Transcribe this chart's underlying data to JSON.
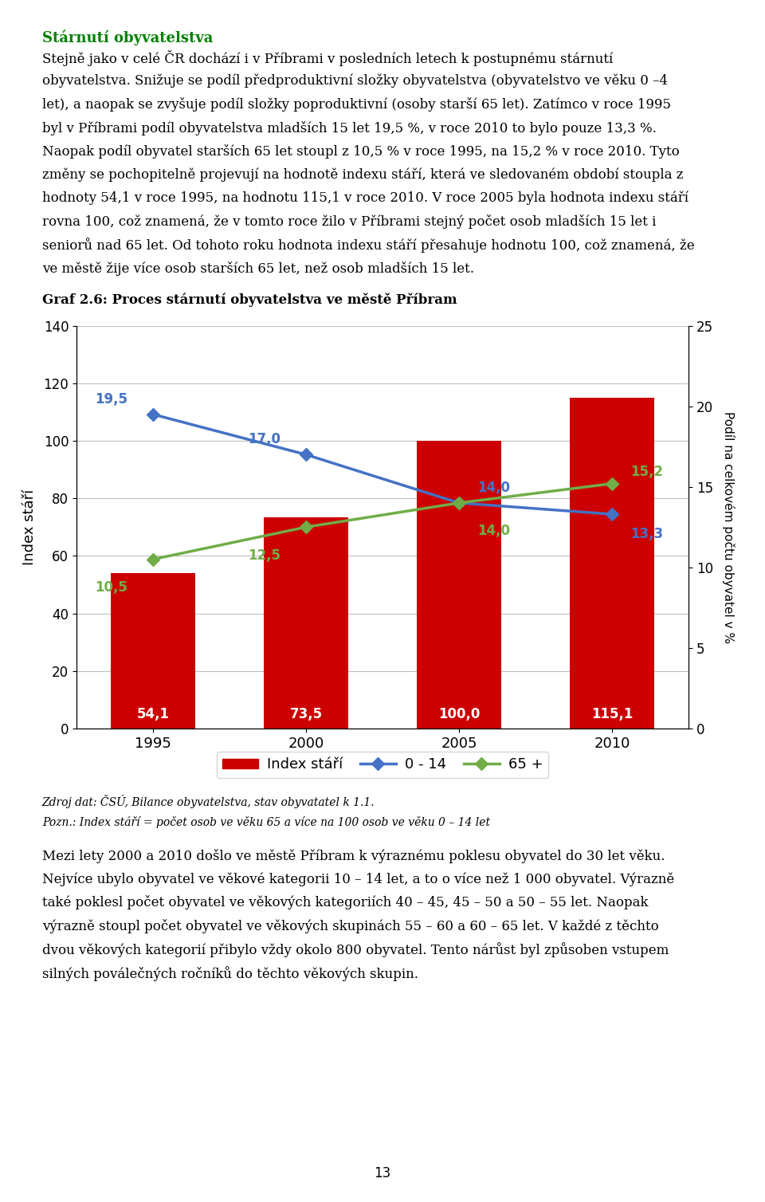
{
  "heading": "Stárnutí obyvatelstva",
  "para1": "Stejně jako v celé ČR dochází i v Příbrami v posledních letech k postupnému stárnutí obyvatelstva. Snižuje se podíl předproduktivní složky obyvatelstva (obyvatelstvo ve věku 0 –4 let), a naopak se zvyšuje podíl složky poproduktivní (osoby starší 65 let). Zatímco v roce 1995 byl v Příbrami podíl obyvatelstva mladších 15 let 19,5 %, v roce 2010 to bylo pouze 13,3 %. Naopak podíl obyvatel starších 65 let stoupl z 10,5 % v roce 1995, na 15,2 % v roce 2010. Tyto změny se pochopitelně projevují na hodnotě indexu stáří, která ve sledovaném období stoupla z hodnoty 54,1 v roce 1995, na hodnotu 115,1 v roce 2010. V roce 2005 byla hodnota indexu stáří rovna 100, což znamená, že v tomto roce žilo v Příbrami stejný počet osob mladších 15 let i seniorů nad 65 let. Od tohoto roku hodnota indexu stáří přesahuje hodnotu 100, což znamená, že ve městě žije více osob starších 65 let, než osob mladších 15 let.",
  "chart_title": "Graf 2.6: Proces stárnutí obyvatelstva ve městě Příbram",
  "years": [
    1995,
    2000,
    2005,
    2010
  ],
  "bar_values": [
    54.1,
    73.5,
    100.0,
    115.1
  ],
  "bar_color": "#cc0000",
  "line0_14_values": [
    19.5,
    17.0,
    14.0,
    13.3
  ],
  "line65_values": [
    10.5,
    12.5,
    14.0,
    15.2
  ],
  "line0_14_color": "#4472c4",
  "line65_color": "#70ad47",
  "left_ylim": [
    0,
    140
  ],
  "right_ylim": [
    0,
    25
  ],
  "left_yticks": [
    0,
    20,
    40,
    60,
    80,
    100,
    120,
    140
  ],
  "right_yticks": [
    0,
    5,
    10,
    15,
    20,
    25
  ],
  "ylabel_left": "Index stáří",
  "ylabel_right": "Podíl na celkovém počtu obyvatel v %",
  "source_line1": "Zdroj dat: ČSÚ, Bilance obyvatelstva, stav obyvatatel k 1.1.",
  "source_line2": "Pozn.: Index stáří = počet osob ve věku 65 a více na 100 osob ve věku 0 – 14 let",
  "legend_labels": [
    "Index stáří",
    "0 - 14",
    "65 +"
  ],
  "para2": "Mezi lety 2000 a 2010 došlo ve městě Příbram k výraznému poklesu obyvatel do 30 let věku. Nejvíce ubylo obyvatel ve věkové kategorii 10 – 14 let, a to o více než 1 000 obyvatel. Výrazně také poklesl počet obyvatel ve věkových kategoriích 40 – 45, 45 – 50 a 50 – 55 let. Naopak výrazně stoupl počet obyvatel ve věkových skupinách 55 – 60 a 60 – 65 let. V každé z těchto dvou věkových kategorií přibylo vždy okolo 800 obyvatel. Tento nárůst byl způsoben vstupem silných poválečných ročníků do těchto věkových skupin.",
  "page_number": "13",
  "heading_color": "#008000",
  "body_text_color": "#000000",
  "chart_title_color": "#000000"
}
